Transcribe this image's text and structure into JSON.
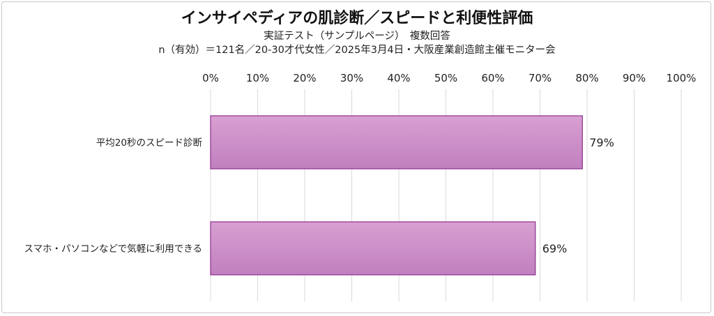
{
  "title": "インサイペディアの肌診断／スピードと利便性評価",
  "subtitle_lines": [
    "実証テスト（サンプルページ）　複数回答",
    "n（有効）＝121名／20-30才代女性／2025年3月4日・大阪産業創造館主催モニター会"
  ],
  "chart_data": {
    "type": "bar",
    "orientation": "horizontal",
    "categories": [
      "平均20秒のスピード診断",
      "スマホ・パソコンなどで気軽に利用できる"
    ],
    "values": [
      79,
      69
    ],
    "value_labels": [
      "79%",
      "69%"
    ],
    "xlim": [
      0,
      100
    ],
    "ticks": [
      0,
      10,
      20,
      30,
      40,
      50,
      60,
      70,
      80,
      90,
      100
    ],
    "tick_labels": [
      "0%",
      "10%",
      "20%",
      "30%",
      "40%",
      "50%",
      "60%",
      "70%",
      "80%",
      "90%",
      "100%"
    ],
    "tick_position": "top",
    "grid": true,
    "legend": "none",
    "colors": {
      "bar_top": "#d8a0d2",
      "bar_bottom": "#c17fbf",
      "bar_border": "#8c2e8c",
      "grid": "#d9d9d9"
    }
  }
}
